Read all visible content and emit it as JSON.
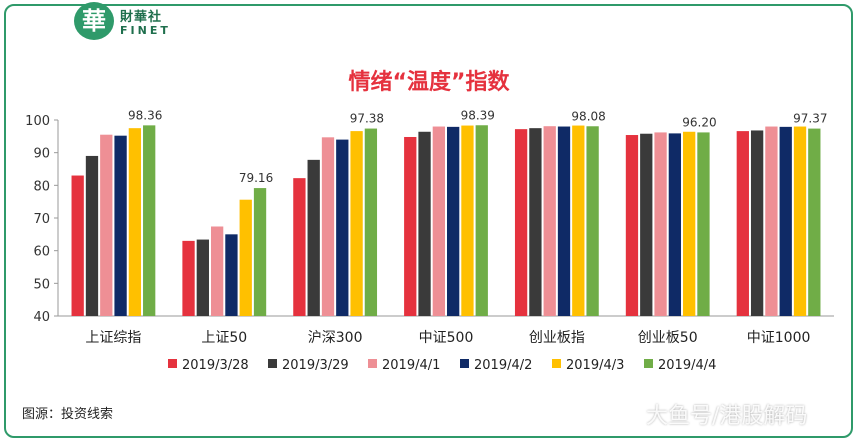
{
  "logo": {
    "mark": "華",
    "cn": "財華社",
    "en": "FINET"
  },
  "source": "图源：投资线索",
  "watermark": "大鱼号/港股解码",
  "colors": {
    "series": [
      "#e5323e",
      "#3a3a3a",
      "#ee8f95",
      "#0f2a66",
      "#ffc000",
      "#70ad47"
    ],
    "title": "#e5323e",
    "frame": "#2f9a6a"
  },
  "chart_data": {
    "type": "bar",
    "title": "情绪“温度”指数",
    "xlabel": "",
    "ylabel": "",
    "ylim": [
      40,
      100
    ],
    "yticks": [
      40,
      50,
      60,
      70,
      80,
      90,
      100
    ],
    "categories": [
      "上证综指",
      "上证50",
      "沪深300",
      "中证500",
      "创业板指",
      "创业板50",
      "中证1000"
    ],
    "legend_position": "bottom",
    "grid": false,
    "series": [
      {
        "name": "2019/3/28",
        "values": [
          83.0,
          63.0,
          82.2,
          94.8,
          97.2,
          95.4,
          96.6
        ]
      },
      {
        "name": "2019/3/29",
        "values": [
          89.0,
          63.4,
          87.8,
          96.4,
          97.5,
          95.8,
          96.8
        ]
      },
      {
        "name": "2019/4/1",
        "values": [
          95.5,
          67.4,
          94.7,
          98.0,
          98.1,
          96.2,
          98.0
        ]
      },
      {
        "name": "2019/4/2",
        "values": [
          95.2,
          65.0,
          94.0,
          97.9,
          98.0,
          95.9,
          97.9
        ]
      },
      {
        "name": "2019/4/3",
        "values": [
          97.5,
          75.6,
          96.6,
          98.3,
          98.3,
          96.4,
          98.0
        ]
      },
      {
        "name": "2019/4/4",
        "values": [
          98.36,
          79.16,
          97.38,
          98.39,
          98.08,
          96.2,
          97.37
        ]
      }
    ],
    "value_labels": [
      "98.36",
      "79.16",
      "97.38",
      "98.39",
      "98.08",
      "96.20",
      "97.37"
    ]
  }
}
